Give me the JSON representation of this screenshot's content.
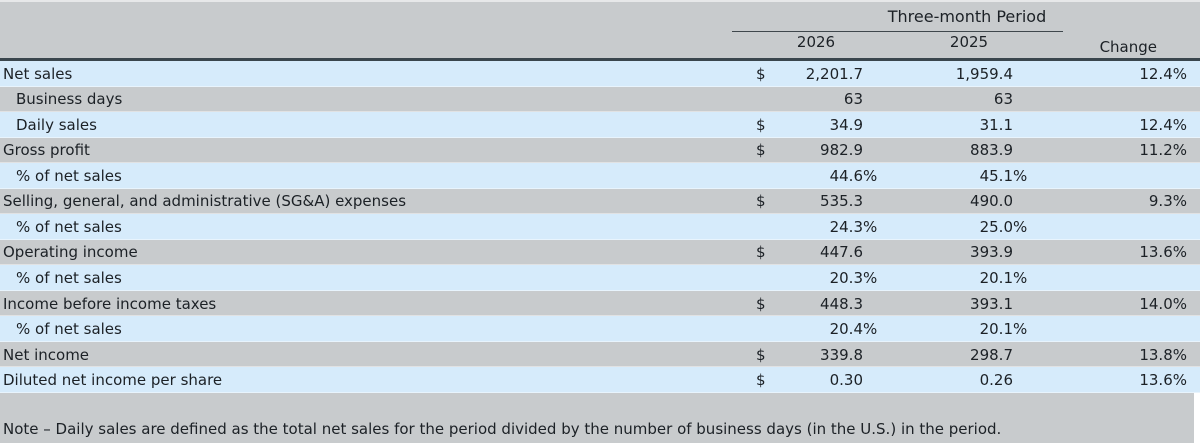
{
  "table": {
    "header": {
      "group_label": "Three-month Period",
      "col_2026": "2026",
      "col_2025": "2025",
      "col_change": "Change"
    },
    "rows": [
      {
        "label": "Net sales",
        "indent": false,
        "shade": "blue",
        "dollar": "$",
        "v2026": "2,201.7",
        "v2025": "1,959.4",
        "change": "12.4%"
      },
      {
        "label": "Business days",
        "indent": true,
        "shade": "gray",
        "dollar": "",
        "v2026": "63",
        "v2025": "63",
        "change": ""
      },
      {
        "label": "Daily sales",
        "indent": true,
        "shade": "blue",
        "dollar": "$",
        "v2026": "34.9",
        "v2025": "31.1",
        "change": "12.4%"
      },
      {
        "label": "Gross profit",
        "indent": false,
        "shade": "gray",
        "dollar": "$",
        "v2026": "982.9",
        "v2025": "883.9",
        "change": "11.2%"
      },
      {
        "label": "% of net sales",
        "indent": true,
        "shade": "blue",
        "dollar": "",
        "v2026": "44.6%",
        "v2025": "45.1%",
        "change": ""
      },
      {
        "label": "Selling, general, and administrative (SG&A) expenses",
        "indent": false,
        "shade": "gray",
        "dollar": "$",
        "v2026": "535.3",
        "v2025": "490.0",
        "change": "9.3%"
      },
      {
        "label": "% of net sales",
        "indent": true,
        "shade": "blue",
        "dollar": "",
        "v2026": "24.3%",
        "v2025": "25.0%",
        "change": ""
      },
      {
        "label": "Operating income",
        "indent": false,
        "shade": "gray",
        "dollar": "$",
        "v2026": "447.6",
        "v2025": "393.9",
        "change": "13.6%"
      },
      {
        "label": "% of net sales",
        "indent": true,
        "shade": "blue",
        "dollar": "",
        "v2026": "20.3%",
        "v2025": "20.1%",
        "change": ""
      },
      {
        "label": "Income before income taxes",
        "indent": false,
        "shade": "gray",
        "dollar": "$",
        "v2026": "448.3",
        "v2025": "393.1",
        "change": "14.0%"
      },
      {
        "label": "% of net sales",
        "indent": true,
        "shade": "blue",
        "dollar": "",
        "v2026": "20.4%",
        "v2025": "20.1%",
        "change": ""
      },
      {
        "label": "Net income",
        "indent": false,
        "shade": "gray",
        "dollar": "$",
        "v2026": "339.8",
        "v2025": "298.7",
        "change": "13.8%"
      },
      {
        "label": "Diluted net income per share",
        "indent": false,
        "shade": "blue",
        "dollar": "$",
        "v2026": "0.30",
        "v2025": "0.26",
        "change": "13.6%"
      }
    ],
    "note": "Note – Daily sales are defined as the total net sales for the period divided by the number of business days (in the U.S.) in the period."
  },
  "colors": {
    "row_blue": "#d6ebfb",
    "row_gray": "#c8cbcd",
    "border_dark": "#3a464d",
    "text": "#1c2126"
  }
}
